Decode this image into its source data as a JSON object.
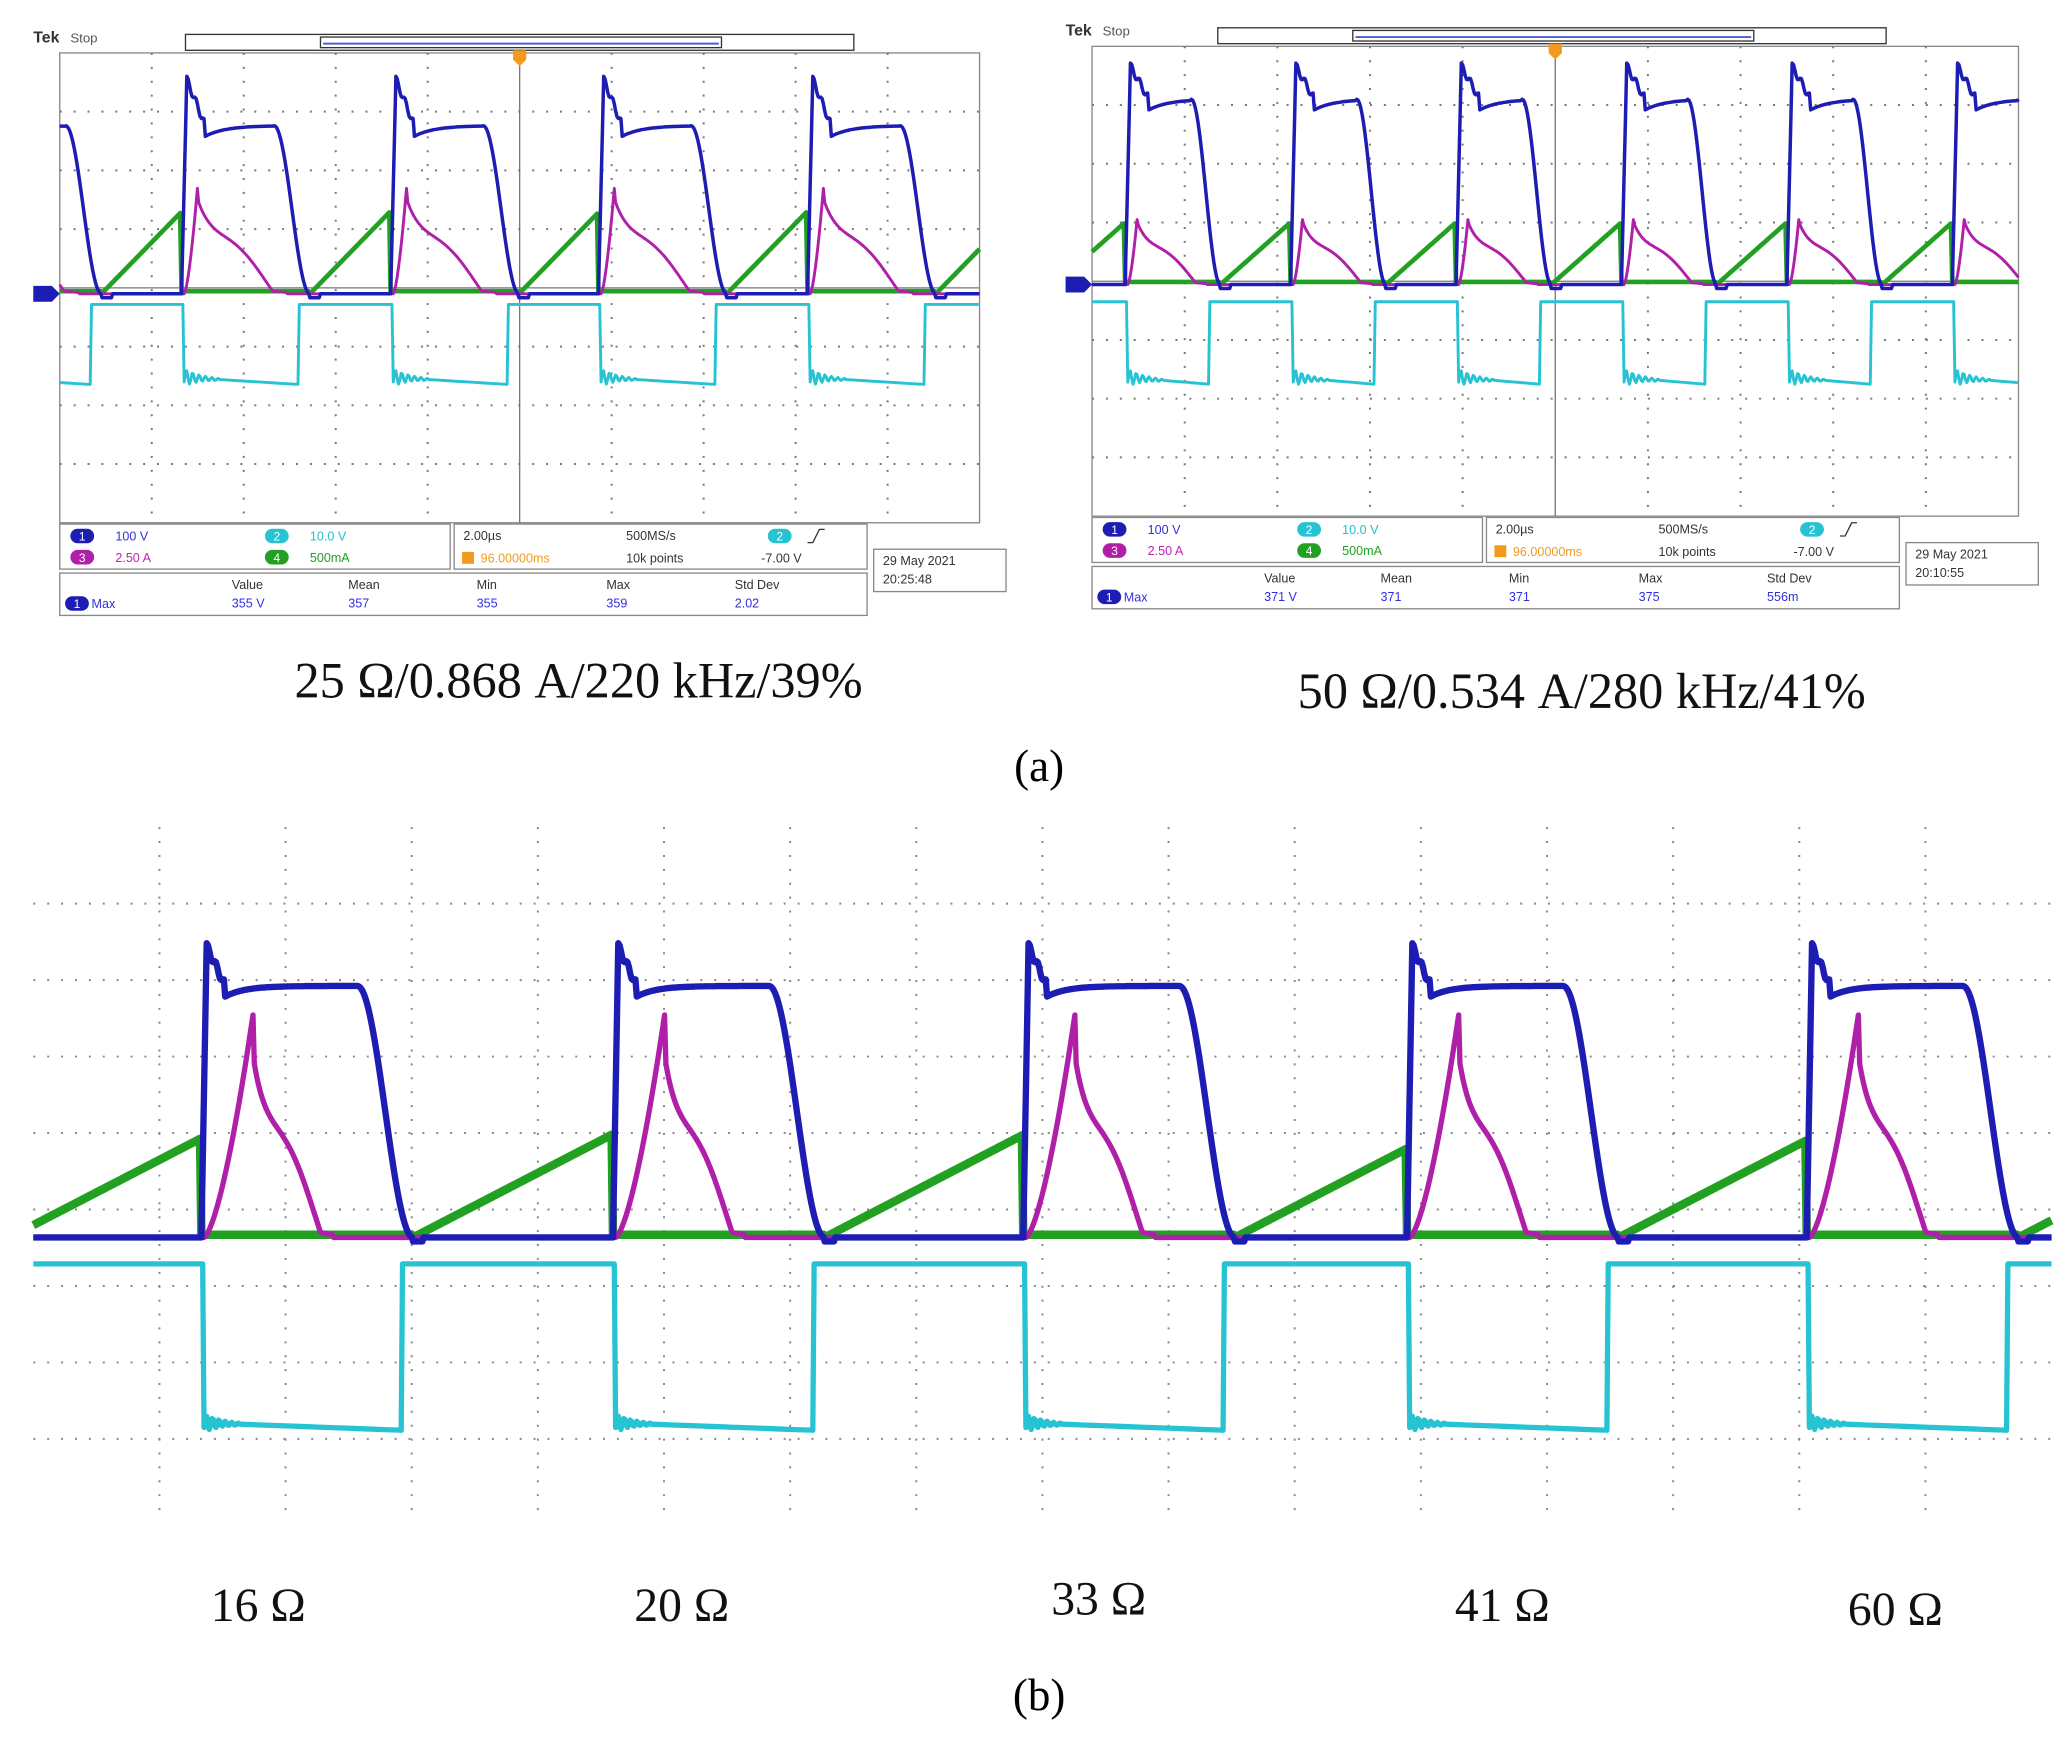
{
  "scopes": [
    {
      "brand": "Tek",
      "status": "Stop",
      "channels": [
        {
          "badge": "1",
          "scale": "100 V"
        },
        {
          "badge": "3",
          "scale": "2.50 A"
        },
        {
          "badge": "2",
          "scale": "10.0 V"
        },
        {
          "badge": "4",
          "scale": "500mA"
        }
      ],
      "timebase": "2.00µs",
      "sample_rate": "500MS/s",
      "trigger_position": "96.00000ms",
      "record_length": "10k points",
      "trigger_channel": "2",
      "trigger_level": "-7.00 V",
      "date": "29 May 2021",
      "time": "20:25:48",
      "measure": {
        "headers": [
          "Value",
          "Mean",
          "Min",
          "Max",
          "Std Dev"
        ],
        "channel": "1",
        "type": "Max",
        "values": [
          "355 V",
          "357",
          "355",
          "359",
          "2.02"
        ]
      },
      "caption": "25 Ω/0.868 A/220 kHz/39%"
    },
    {
      "brand": "Tek",
      "status": "Stop",
      "channels": [
        {
          "badge": "1",
          "scale": "100 V"
        },
        {
          "badge": "3",
          "scale": "2.50 A"
        },
        {
          "badge": "2",
          "scale": "10.0 V"
        },
        {
          "badge": "4",
          "scale": "500mA"
        }
      ],
      "timebase": "2.00µs",
      "sample_rate": "500MS/s",
      "trigger_position": "96.00000ms",
      "record_length": "10k points",
      "trigger_channel": "2",
      "trigger_level": "-7.00 V",
      "date": "29 May 2021",
      "time": "20:10:55",
      "measure": {
        "headers": [
          "Value",
          "Mean",
          "Min",
          "Max",
          "Std Dev"
        ],
        "channel": "1",
        "type": "Max",
        "values": [
          "371 V",
          "371",
          "371",
          "375",
          "556m"
        ]
      },
      "caption": "50 Ω/0.534 A/280 kHz/41%"
    }
  ],
  "label_a": "(a)",
  "bottom": {
    "labels": [
      "16 Ω",
      "20 Ω",
      "33 Ω",
      "41 Ω",
      "60 Ω"
    ]
  },
  "label_b": "(b)"
}
